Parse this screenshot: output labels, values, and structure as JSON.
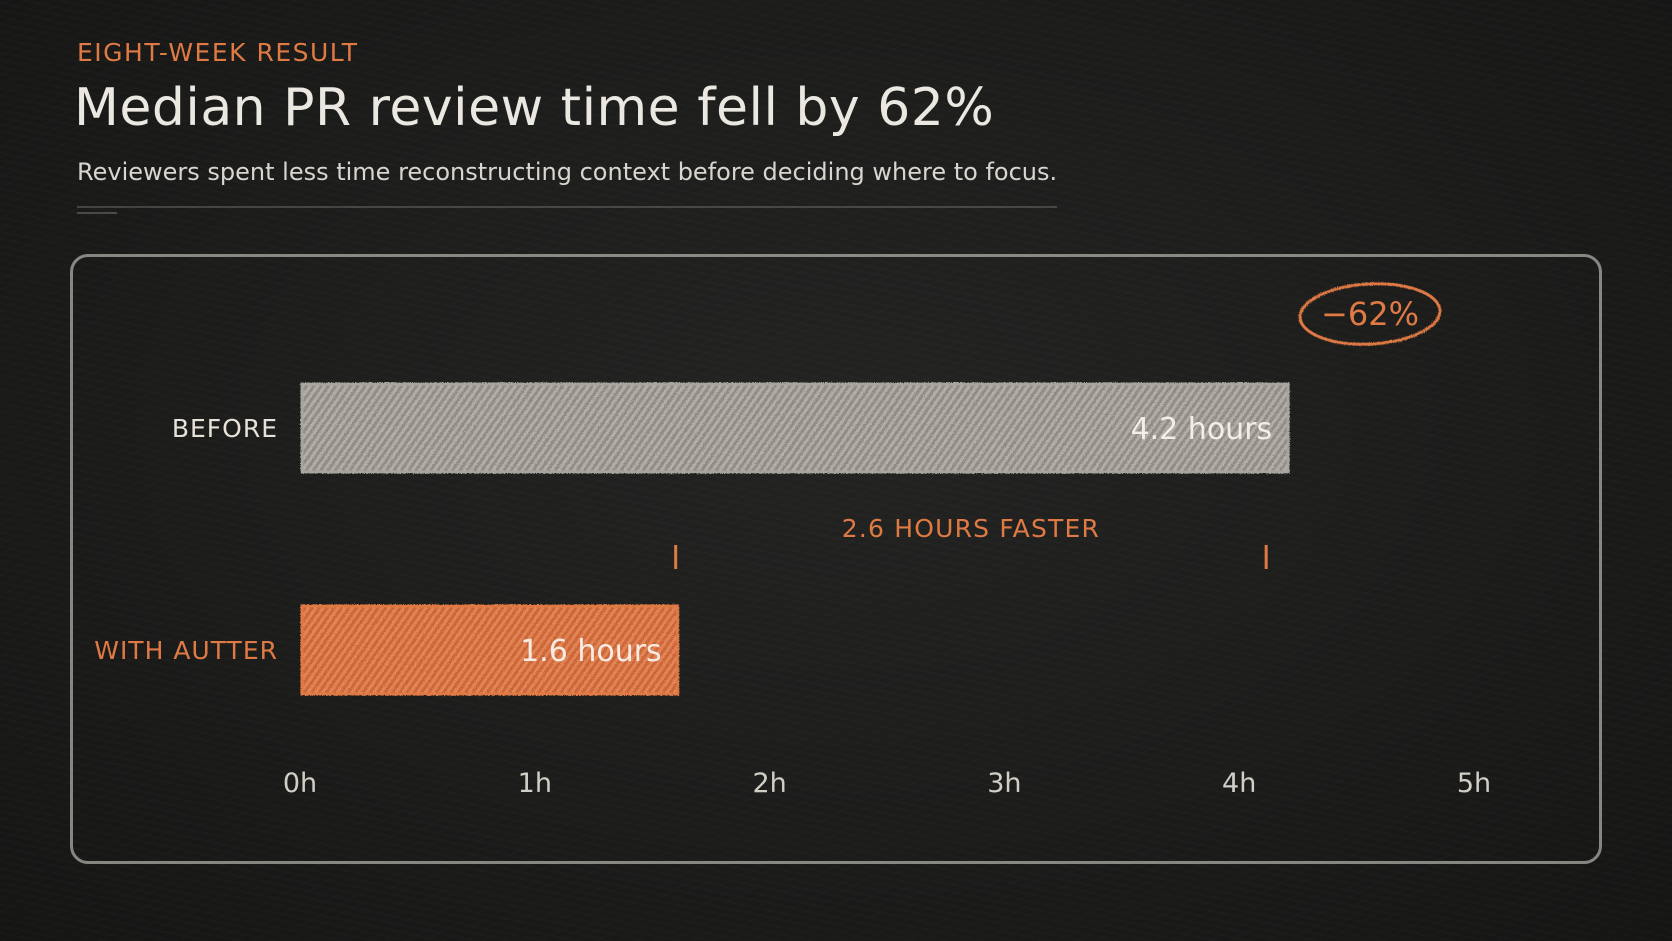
{
  "header": {
    "eyebrow": "Eight-week result",
    "title": "Median PR review time fell by 62%",
    "subtitle": "Reviewers spent less time reconstructing context before deciding where to focus."
  },
  "chart_data": {
    "type": "bar",
    "orientation": "horizontal",
    "categories": [
      "BEFORE",
      "WITH AUTTER"
    ],
    "values": [
      4.2,
      1.6
    ],
    "value_labels": [
      "4.2 hours",
      "1.6 hours"
    ],
    "units": "hours",
    "xlim": [
      0,
      5
    ],
    "x_ticks": [
      0,
      1,
      2,
      3,
      4,
      5
    ],
    "x_tick_labels": [
      "0h",
      "1h",
      "2h",
      "3h",
      "4h",
      "5h"
    ],
    "grid": "vertical",
    "annotations": {
      "difference_label": "2.6 HOURS FASTER",
      "difference_from": 1.6,
      "difference_to": 4.2,
      "badge": "−62%"
    },
    "colors": {
      "before_bar": "#a8a59f",
      "after_bar": "#e07a45",
      "accent": "#e07a45",
      "chalk": "#e6e2d9"
    }
  }
}
